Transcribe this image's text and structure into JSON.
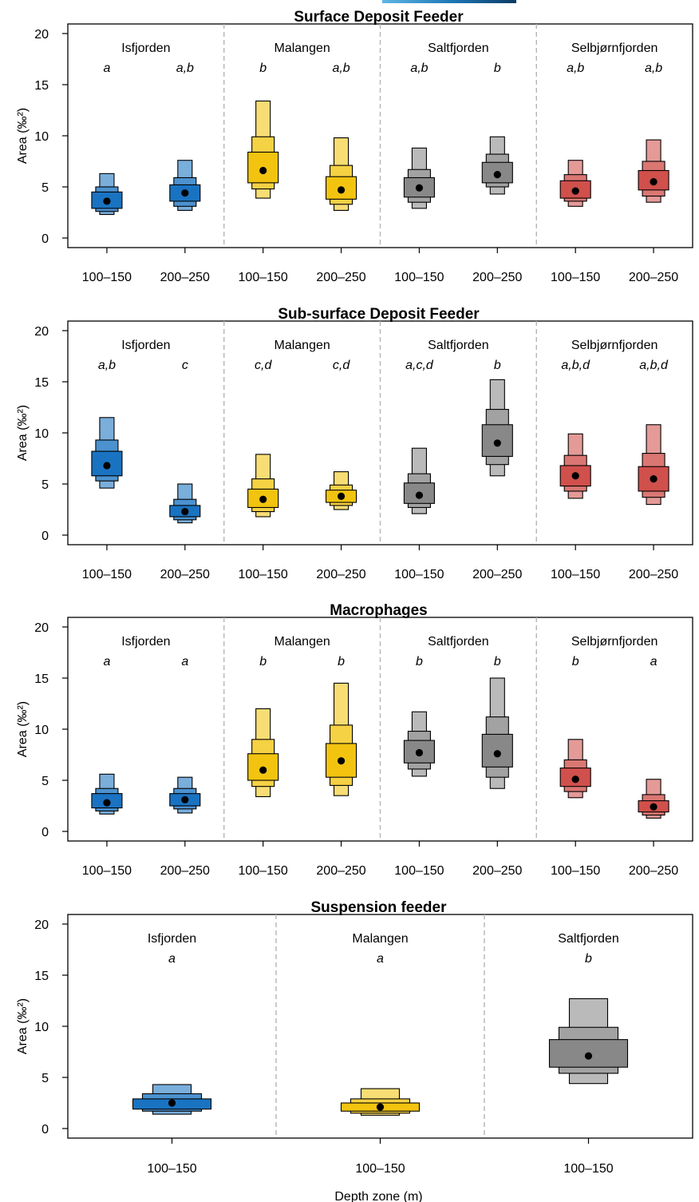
{
  "chart_data": [
    {
      "type": "interval-box",
      "title": "Surface Deposit Feeder",
      "ylabel": "Area (‰²)",
      "ylim": [
        0,
        20
      ],
      "yticks": [
        0,
        5,
        10,
        15,
        20
      ],
      "groups": [
        {
          "name": "Isfjorden",
          "color": "#1a73c1",
          "boxes": [
            {
              "depth": "100–150",
              "letter": "a",
              "mode": 3.6,
              "i50": [
                2.9,
                4.5
              ],
              "i80": [
                2.6,
                5.0
              ],
              "i95": [
                2.3,
                6.3
              ]
            },
            {
              "depth": "200–250",
              "letter": "a,b",
              "mode": 4.4,
              "i50": [
                3.6,
                5.2
              ],
              "i80": [
                3.1,
                5.9
              ],
              "i95": [
                2.7,
                7.6
              ]
            }
          ]
        },
        {
          "name": "Malangen",
          "color": "#f2c40f",
          "boxes": [
            {
              "depth": "100–150",
              "letter": "b",
              "mode": 6.6,
              "i50": [
                5.4,
                8.4
              ],
              "i80": [
                4.8,
                9.9
              ],
              "i95": [
                3.9,
                13.4
              ]
            },
            {
              "depth": "200–250",
              "letter": "a,b",
              "mode": 4.7,
              "i50": [
                3.8,
                6.0
              ],
              "i80": [
                3.3,
                7.1
              ],
              "i95": [
                2.7,
                9.8
              ]
            }
          ]
        },
        {
          "name": "Saltfjorden",
          "color": "#888888",
          "boxes": [
            {
              "depth": "100–150",
              "letter": "a,b",
              "mode": 4.9,
              "i50": [
                4.0,
                5.9
              ],
              "i80": [
                3.5,
                6.7
              ],
              "i95": [
                2.9,
                8.8
              ]
            },
            {
              "depth": "200–250",
              "letter": "b",
              "mode": 6.2,
              "i50": [
                5.4,
                7.4
              ],
              "i80": [
                5.0,
                8.2
              ],
              "i95": [
                4.3,
                9.9
              ]
            }
          ]
        },
        {
          "name": "Selbjørnfjorden",
          "color": "#d0504c",
          "boxes": [
            {
              "depth": "100–150",
              "letter": "a,b",
              "mode": 4.6,
              "i50": [
                3.9,
                5.6
              ],
              "i80": [
                3.6,
                6.2
              ],
              "i95": [
                3.1,
                7.6
              ]
            },
            {
              "depth": "200–250",
              "letter": "a,b",
              "mode": 5.5,
              "i50": [
                4.7,
                6.6
              ],
              "i80": [
                4.1,
                7.5
              ],
              "i95": [
                3.5,
                9.6
              ]
            }
          ]
        }
      ],
      "xtick_labels": [
        "100–150",
        "200–250",
        "100–150",
        "200–250",
        "100–150",
        "200–250",
        "100–150",
        "200–250"
      ],
      "xlabel": ""
    },
    {
      "type": "interval-box",
      "title": "Sub-surface Deposit Feeder",
      "ylabel": "Area (‰²)",
      "ylim": [
        0,
        20
      ],
      "yticks": [
        0,
        5,
        10,
        15,
        20
      ],
      "groups": [
        {
          "name": "Isfjorden",
          "color": "#1a73c1",
          "boxes": [
            {
              "depth": "100–150",
              "letter": "a,b",
              "mode": 6.8,
              "i50": [
                5.8,
                8.2
              ],
              "i80": [
                5.3,
                9.3
              ],
              "i95": [
                4.6,
                11.5
              ]
            },
            {
              "depth": "200–250",
              "letter": "c",
              "mode": 2.3,
              "i50": [
                1.8,
                2.9
              ],
              "i80": [
                1.5,
                3.5
              ],
              "i95": [
                1.2,
                5.0
              ]
            }
          ]
        },
        {
          "name": "Malangen",
          "color": "#f2c40f",
          "boxes": [
            {
              "depth": "100–150",
              "letter": "c,d",
              "mode": 3.5,
              "i50": [
                2.7,
                4.5
              ],
              "i80": [
                2.3,
                5.5
              ],
              "i95": [
                1.8,
                7.9
              ]
            },
            {
              "depth": "200–250",
              "letter": "c,d",
              "mode": 3.8,
              "i50": [
                3.2,
                4.4
              ],
              "i80": [
                2.9,
                4.9
              ],
              "i95": [
                2.5,
                6.2
              ]
            }
          ]
        },
        {
          "name": "Saltfjorden",
          "color": "#888888",
          "boxes": [
            {
              "depth": "100–150",
              "letter": "a,c,d",
              "mode": 3.9,
              "i50": [
                3.1,
                5.1
              ],
              "i80": [
                2.7,
                6.0
              ],
              "i95": [
                2.1,
                8.5
              ]
            },
            {
              "depth": "200–250",
              "letter": "b",
              "mode": 9.0,
              "i50": [
                7.7,
                10.8
              ],
              "i80": [
                6.9,
                12.3
              ],
              "i95": [
                5.8,
                15.2
              ]
            }
          ]
        },
        {
          "name": "Selbjørnfjorden",
          "color": "#d0504c",
          "boxes": [
            {
              "depth": "100–150",
              "letter": "a,b,d",
              "mode": 5.8,
              "i50": [
                4.8,
                6.8
              ],
              "i80": [
                4.3,
                7.8
              ],
              "i95": [
                3.6,
                9.9
              ]
            },
            {
              "depth": "200–250",
              "letter": "a,b,d",
              "mode": 5.5,
              "i50": [
                4.3,
                6.7
              ],
              "i80": [
                3.7,
                8.0
              ],
              "i95": [
                3.0,
                10.8
              ]
            }
          ]
        }
      ],
      "xtick_labels": [
        "100–150",
        "200–250",
        "100–150",
        "200–250",
        "100–150",
        "200–250",
        "100–150",
        "200–250"
      ],
      "xlabel": ""
    },
    {
      "type": "interval-box",
      "title": "Macrophages",
      "ylabel": "Area (‰²)",
      "ylim": [
        0,
        20
      ],
      "yticks": [
        0,
        5,
        10,
        15,
        20
      ],
      "groups": [
        {
          "name": "Isfjorden",
          "color": "#1a73c1",
          "boxes": [
            {
              "depth": "100–150",
              "letter": "a",
              "mode": 2.8,
              "i50": [
                2.3,
                3.7
              ],
              "i80": [
                2.0,
                4.2
              ],
              "i95": [
                1.7,
                5.6
              ]
            },
            {
              "depth": "200–250",
              "letter": "a",
              "mode": 3.1,
              "i50": [
                2.5,
                3.7
              ],
              "i80": [
                2.2,
                4.2
              ],
              "i95": [
                1.8,
                5.3
              ]
            }
          ]
        },
        {
          "name": "Malangen",
          "color": "#f2c40f",
          "boxes": [
            {
              "depth": "100–150",
              "letter": "b",
              "mode": 6.0,
              "i50": [
                5.0,
                7.6
              ],
              "i80": [
                4.4,
                9.0
              ],
              "i95": [
                3.4,
                12.0
              ]
            },
            {
              "depth": "200–250",
              "letter": "b",
              "mode": 6.9,
              "i50": [
                5.3,
                8.6
              ],
              "i80": [
                4.5,
                10.4
              ],
              "i95": [
                3.5,
                14.5
              ]
            }
          ]
        },
        {
          "name": "Saltfjorden",
          "color": "#888888",
          "boxes": [
            {
              "depth": "100–150",
              "letter": "b",
              "mode": 7.7,
              "i50": [
                6.7,
                8.9
              ],
              "i80": [
                6.1,
                9.8
              ],
              "i95": [
                5.4,
                11.7
              ]
            },
            {
              "depth": "200–250",
              "letter": "b",
              "mode": 7.6,
              "i50": [
                6.3,
                9.5
              ],
              "i80": [
                5.3,
                11.2
              ],
              "i95": [
                4.2,
                15.0
              ]
            }
          ]
        },
        {
          "name": "Selbjørnfjorden",
          "color": "#d0504c",
          "boxes": [
            {
              "depth": "100–150",
              "letter": "b",
              "mode": 5.1,
              "i50": [
                4.4,
                6.2
              ],
              "i80": [
                3.9,
                7.0
              ],
              "i95": [
                3.3,
                9.0
              ]
            },
            {
              "depth": "200–250",
              "letter": "a",
              "mode": 2.4,
              "i50": [
                1.9,
                3.0
              ],
              "i80": [
                1.6,
                3.6
              ],
              "i95": [
                1.3,
                5.1
              ]
            }
          ]
        }
      ],
      "xtick_labels": [
        "100–150",
        "200–250",
        "100–150",
        "200–250",
        "100–150",
        "200–250",
        "100–150",
        "200–250"
      ],
      "xlabel": ""
    },
    {
      "type": "interval-box",
      "title": "Suspension feeder",
      "ylabel": "Area (‰²)",
      "ylim": [
        0,
        20
      ],
      "yticks": [
        0,
        5,
        10,
        15,
        20
      ],
      "groups": [
        {
          "name": "Isfjorden",
          "color": "#1a73c1",
          "boxes": [
            {
              "depth": "100–150",
              "letter": "a",
              "mode": 2.5,
              "i50": [
                1.9,
                2.9
              ],
              "i80": [
                1.7,
                3.4
              ],
              "i95": [
                1.4,
                4.3
              ]
            }
          ]
        },
        {
          "name": "Malangen",
          "color": "#f2c40f",
          "boxes": [
            {
              "depth": "100–150",
              "letter": "a",
              "mode": 2.1,
              "i50": [
                1.7,
                2.5
              ],
              "i80": [
                1.5,
                2.9
              ],
              "i95": [
                1.3,
                3.9
              ]
            }
          ]
        },
        {
          "name": "Saltfjorden",
          "color": "#888888",
          "boxes": [
            {
              "depth": "100–150",
              "letter": "b",
              "mode": 7.1,
              "i50": [
                6.0,
                8.7
              ],
              "i80": [
                5.4,
                9.9
              ],
              "i95": [
                4.4,
                12.7
              ]
            }
          ]
        }
      ],
      "xtick_labels": [
        "100–150",
        "100–150",
        "100–150"
      ],
      "xlabel": "Depth zone (m)"
    }
  ]
}
